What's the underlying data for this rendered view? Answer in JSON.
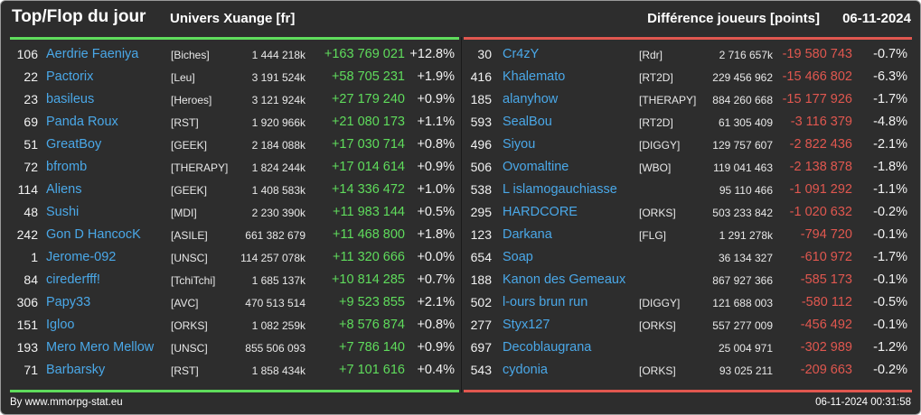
{
  "header": {
    "title": "Top/Flop du jour",
    "universe": "Univers Xuange [fr]",
    "metric": "Différence joueurs [points]",
    "date": "06-11-2024"
  },
  "colors": {
    "background": "#2d2d2d",
    "gain": "#5fdc5c",
    "loss": "#e0574f",
    "player_name": "#4aa8e8"
  },
  "top": [
    {
      "rank": "106",
      "name": "Aerdrie Faeniya",
      "alliance": "[Biches]",
      "points": "1 444 218k",
      "diff": "+163 769 021",
      "pct": "+12.8%"
    },
    {
      "rank": "22",
      "name": "Pactorix",
      "alliance": "[Leu]",
      "points": "3 191 524k",
      "diff": "+58 705 231",
      "pct": "+1.9%"
    },
    {
      "rank": "23",
      "name": "basileus",
      "alliance": "[Heroes]",
      "points": "3 121 924k",
      "diff": "+27 179 240",
      "pct": "+0.9%"
    },
    {
      "rank": "69",
      "name": "Panda Roux",
      "alliance": "[RST]",
      "points": "1 920 966k",
      "diff": "+21 080 173",
      "pct": "+1.1%"
    },
    {
      "rank": "51",
      "name": "GreatBoy",
      "alliance": "[GEEK]",
      "points": "2 184 088k",
      "diff": "+17 030 714",
      "pct": "+0.8%"
    },
    {
      "rank": "72",
      "name": "bfromb",
      "alliance": "[THERAPY]",
      "points": "1 824 244k",
      "diff": "+17 014 614",
      "pct": "+0.9%"
    },
    {
      "rank": "114",
      "name": "Aliens",
      "alliance": "[GEEK]",
      "points": "1 408 583k",
      "diff": "+14 336 472",
      "pct": "+1.0%"
    },
    {
      "rank": "48",
      "name": "Sushi",
      "alliance": "[MDI]",
      "points": "2 230 390k",
      "diff": "+11 983 144",
      "pct": "+0.5%"
    },
    {
      "rank": "242",
      "name": "Gon D HancocK",
      "alliance": "[ASILE]",
      "points": "661 382 679",
      "diff": "+11 468 800",
      "pct": "+1.8%"
    },
    {
      "rank": "1",
      "name": "Jerome-092",
      "alliance": "[UNSC]",
      "points": "114 257 078k",
      "diff": "+11 320 666",
      "pct": "+0.0%"
    },
    {
      "rank": "84",
      "name": "cirederfff!",
      "alliance": "[TchiTchi]",
      "points": "1 685 137k",
      "diff": "+10 814 285",
      "pct": "+0.7%"
    },
    {
      "rank": "306",
      "name": "Papy33",
      "alliance": "[AVC]",
      "points": "470 513 514",
      "diff": "+9 523 855",
      "pct": "+2.1%"
    },
    {
      "rank": "151",
      "name": "Igloo",
      "alliance": "[ORKS]",
      "points": "1 082 259k",
      "diff": "+8 576 874",
      "pct": "+0.8%"
    },
    {
      "rank": "193",
      "name": "Mero Mero Mellow",
      "alliance": "[UNSC]",
      "points": "855 506 093",
      "diff": "+7 786 140",
      "pct": "+0.9%"
    },
    {
      "rank": "71",
      "name": "Barbarsky",
      "alliance": "[RST]",
      "points": "1 858 434k",
      "diff": "+7 101 616",
      "pct": "+0.4%"
    }
  ],
  "flop": [
    {
      "rank": "30",
      "name": "Cr4zY",
      "alliance": "[Rdr]",
      "points": "2 716 657k",
      "diff": "-19 580 743",
      "pct": "-0.7%"
    },
    {
      "rank": "416",
      "name": "Khalemato",
      "alliance": "[RT2D]",
      "points": "229 456 962",
      "diff": "-15 466 802",
      "pct": "-6.3%"
    },
    {
      "rank": "185",
      "name": "alanyhow",
      "alliance": "[THERAPY]",
      "points": "884 260 668",
      "diff": "-15 177 926",
      "pct": "-1.7%"
    },
    {
      "rank": "593",
      "name": "SealBou",
      "alliance": "[RT2D]",
      "points": "61 305 409",
      "diff": "-3 116 379",
      "pct": "-4.8%"
    },
    {
      "rank": "496",
      "name": "Siyou",
      "alliance": "[DIGGY]",
      "points": "129 757 607",
      "diff": "-2 822 436",
      "pct": "-2.1%"
    },
    {
      "rank": "506",
      "name": "Ovomaltine",
      "alliance": "[WBO]",
      "points": "119 041 463",
      "diff": "-2 138 878",
      "pct": "-1.8%"
    },
    {
      "rank": "538",
      "name": "L islamogauchiasse",
      "alliance": "",
      "points": "95 110 466",
      "diff": "-1 091 292",
      "pct": "-1.1%"
    },
    {
      "rank": "295",
      "name": "HARDCORE",
      "alliance": "[ORKS]",
      "points": "503 233 842",
      "diff": "-1 020 632",
      "pct": "-0.2%"
    },
    {
      "rank": "123",
      "name": "Darkana",
      "alliance": "[FLG]",
      "points": "1 291 278k",
      "diff": "-794 720",
      "pct": "-0.1%"
    },
    {
      "rank": "654",
      "name": "Soap",
      "alliance": "",
      "points": "36 134 327",
      "diff": "-610 972",
      "pct": "-1.7%"
    },
    {
      "rank": "188",
      "name": "Kanon des Gemeaux",
      "alliance": "",
      "points": "867 927 366",
      "diff": "-585 173",
      "pct": "-0.1%"
    },
    {
      "rank": "502",
      "name": "l-ours brun run",
      "alliance": "[DIGGY]",
      "points": "121 688 003",
      "diff": "-580 112",
      "pct": "-0.5%"
    },
    {
      "rank": "277",
      "name": "Styx127",
      "alliance": "[ORKS]",
      "points": "557 277 009",
      "diff": "-456 492",
      "pct": "-0.1%"
    },
    {
      "rank": "697",
      "name": "Decoblaugrana",
      "alliance": "",
      "points": "25 004 971",
      "diff": "-302 989",
      "pct": "-1.2%"
    },
    {
      "rank": "543",
      "name": "cydonia",
      "alliance": "[ORKS]",
      "points": "93 025 211",
      "diff": "-209 663",
      "pct": "-0.2%"
    }
  ],
  "footer": {
    "source": "By www.mmorpg-stat.eu",
    "timestamp": "06-11-2024 00:31:58"
  }
}
